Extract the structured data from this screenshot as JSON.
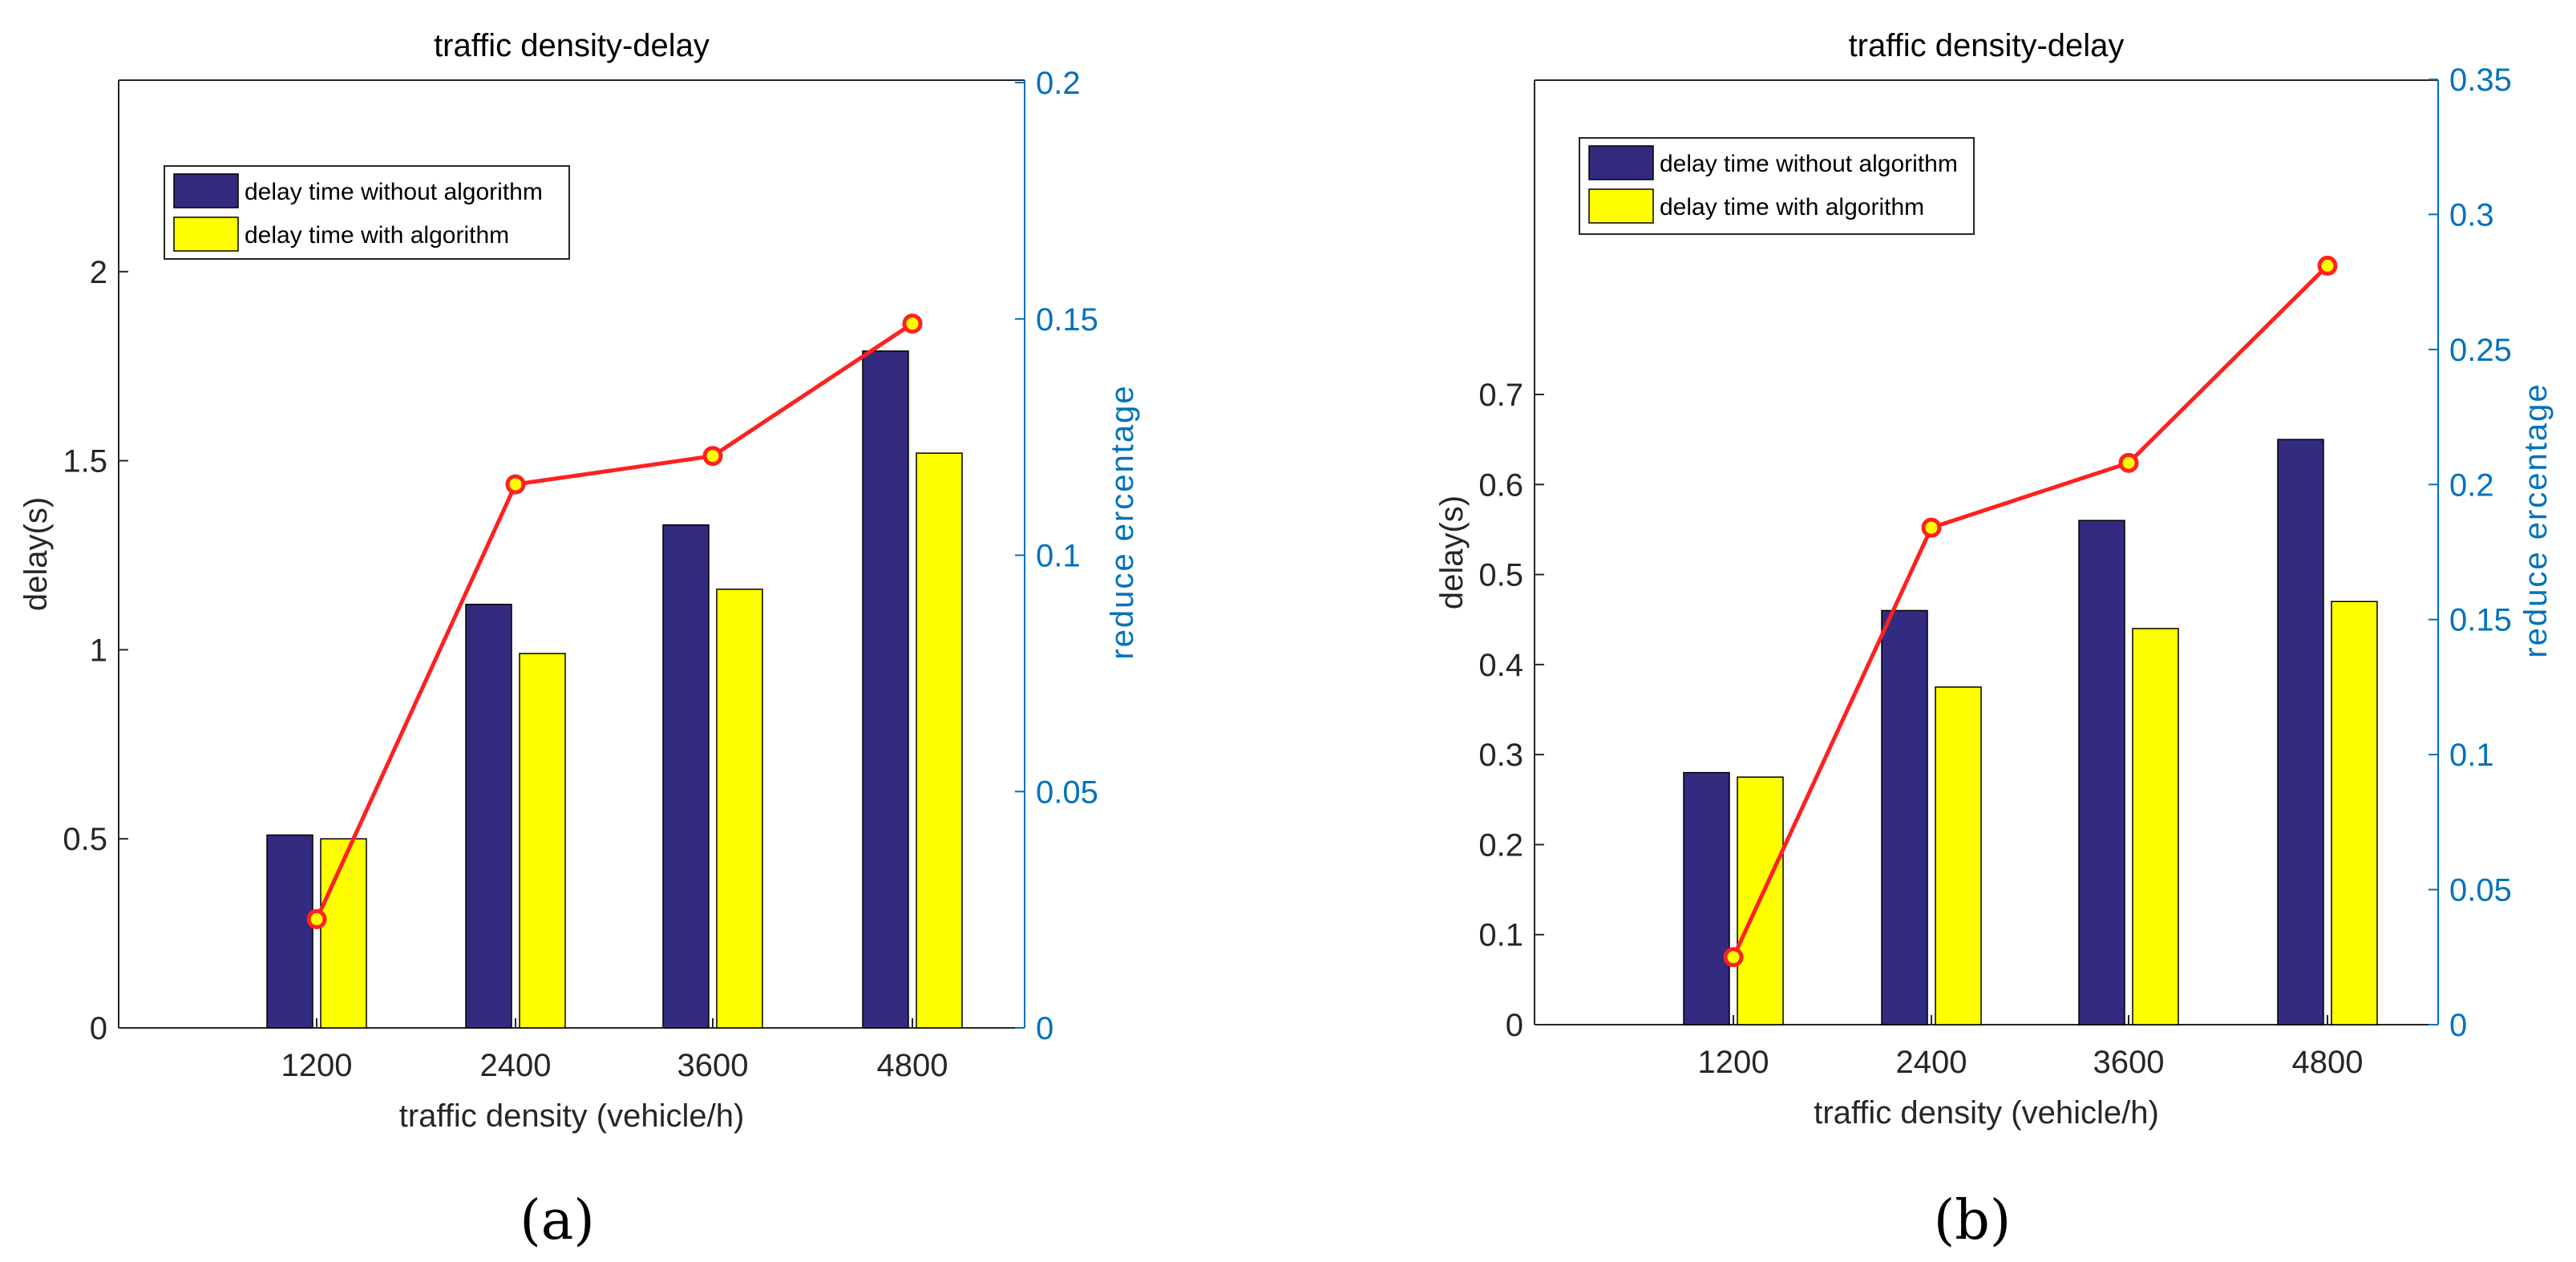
{
  "chart_data": [
    {
      "panel_label": "(a)",
      "type": "bar",
      "title": "traffic density-delay",
      "xlabel": "traffic density (vehicle/h)",
      "ylabel": "delay(s)",
      "y2label": "reduce  ercentage",
      "categories": [
        "1200",
        "2400",
        "3600",
        "4800"
      ],
      "ylim": [
        0,
        2.5
      ],
      "yticks": [
        "0",
        "0.5",
        "1",
        "1.5",
        "2"
      ],
      "y2lim": [
        0,
        0.2
      ],
      "y2ticks": [
        "0",
        "0.05",
        "0.1",
        "0.15",
        "0.2"
      ],
      "series": [
        {
          "name": "delay time without algorithm",
          "values": [
            0.51,
            1.12,
            1.33,
            1.79
          ],
          "color": "#332B7F"
        },
        {
          "name": "delay time with algorithm",
          "values": [
            0.5,
            0.99,
            1.16,
            1.52
          ],
          "color": "#FFFF00"
        }
      ],
      "line_series": {
        "name": "reduce percentage",
        "axis": "right",
        "values": [
          0.023,
          0.115,
          0.121,
          0.149
        ],
        "color": "#FF2020",
        "marker_fill": "#FFFF00"
      },
      "legend_position": "top-left"
    },
    {
      "panel_label": "(b)",
      "type": "bar",
      "title": "traffic density-delay",
      "xlabel": "traffic density (vehicle/h)",
      "ylabel": "delay(s)",
      "y2label": "reduce  ercentage",
      "categories": [
        "1200",
        "2400",
        "3600",
        "4800"
      ],
      "ylim": [
        0,
        1.05
      ],
      "yticks": [
        "0",
        "0.1",
        "0.2",
        "0.3",
        "0.4",
        "0.5",
        "0.6",
        "0.7"
      ],
      "y2lim": [
        0,
        0.35
      ],
      "y2ticks": [
        "0",
        "0.05",
        "0.1",
        "0.15",
        "0.2",
        "0.25",
        "0.3",
        "0.35"
      ],
      "series": [
        {
          "name": "delay time without algorithm",
          "values": [
            0.28,
            0.46,
            0.56,
            0.65
          ],
          "color": "#332B7F"
        },
        {
          "name": "delay time with algorithm",
          "values": [
            0.275,
            0.375,
            0.44,
            0.47
          ],
          "color": "#FFFF00"
        }
      ],
      "line_series": {
        "name": "reduce percentage",
        "axis": "right",
        "values": [
          0.025,
          0.184,
          0.208,
          0.281
        ],
        "color": "#FF2020",
        "marker_fill": "#FFFF00"
      },
      "legend_position": "top-left"
    }
  ]
}
